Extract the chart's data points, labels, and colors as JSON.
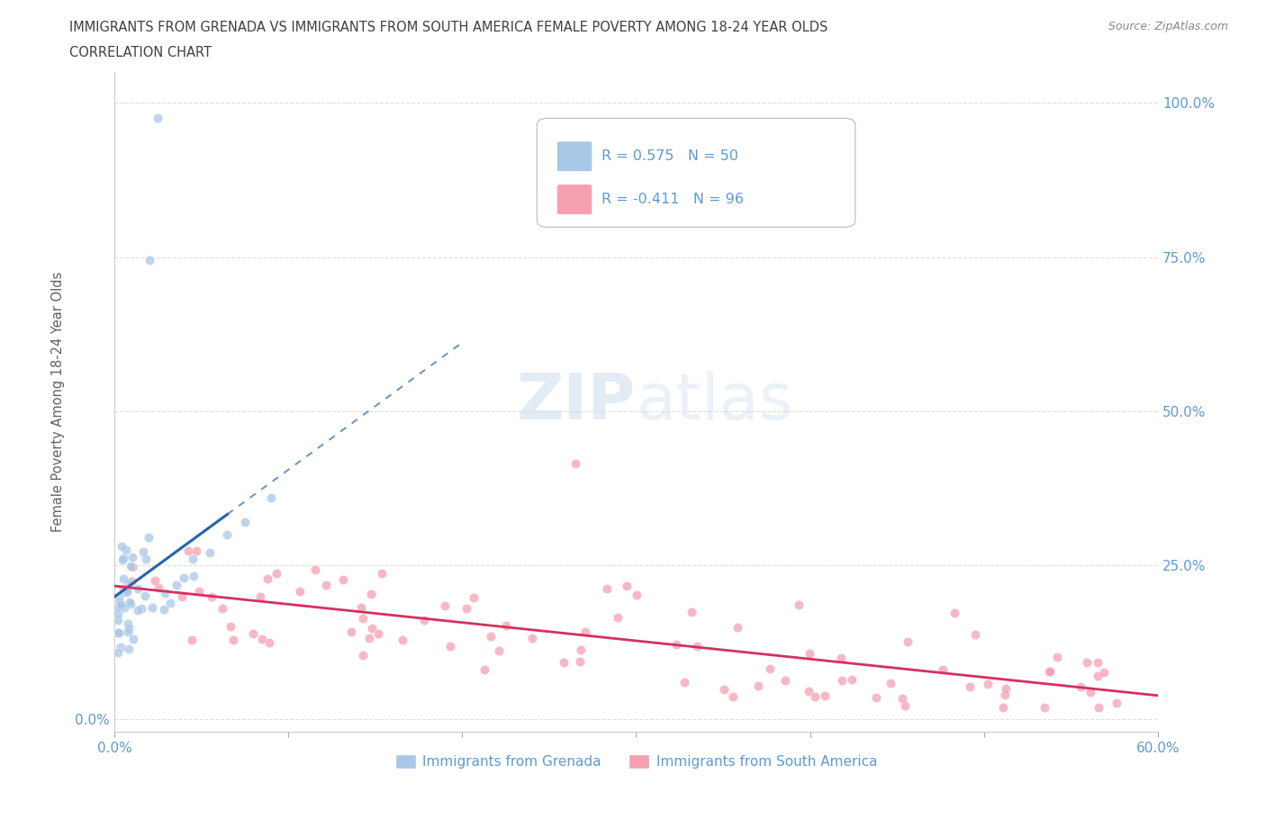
{
  "title_line1": "IMMIGRANTS FROM GRENADA VS IMMIGRANTS FROM SOUTH AMERICA FEMALE POVERTY AMONG 18-24 YEAR OLDS",
  "title_line2": "CORRELATION CHART",
  "source_text": "Source: ZipAtlas.com",
  "ylabel": "Female Poverty Among 18-24 Year Olds",
  "xlim": [
    0.0,
    0.6
  ],
  "ylim": [
    -0.02,
    1.05
  ],
  "ytick_positions": [
    0.0,
    0.25,
    0.5,
    0.75,
    1.0
  ],
  "xtick_positions": [
    0.0,
    0.1,
    0.2,
    0.3,
    0.4,
    0.5,
    0.6
  ],
  "grenada_color": "#a8c8e8",
  "grenada_color_dark": "#2166ac",
  "sa_color": "#f4a0b0",
  "sa_color_dark": "#d63060",
  "grenada_R": 0.575,
  "grenada_N": 50,
  "sa_R": -0.411,
  "sa_N": 96,
  "legend_labels": [
    "Immigrants from Grenada",
    "Immigrants from South America"
  ],
  "watermark_zip": "ZIP",
  "watermark_atlas": "atlas",
  "background_color": "#ffffff",
  "grid_color": "#d8d8d8",
  "title_color": "#404040",
  "axis_label_color": "#606060",
  "tick_color": "#5b9bd5",
  "legend_r_color": "#5b9bd5"
}
